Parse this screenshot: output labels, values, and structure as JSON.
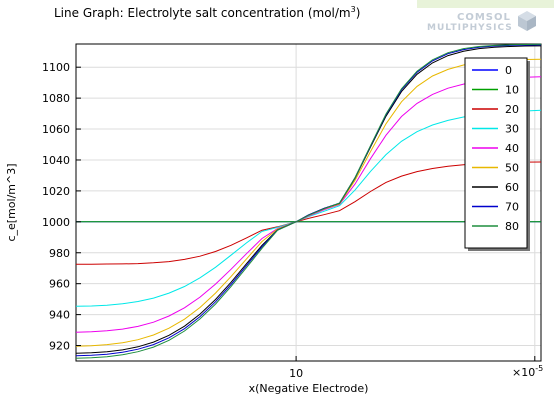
{
  "title": {
    "text": "Line Graph: Electrolyte salt concentration (mol/m",
    "superscript": "3",
    "suffix": ")"
  },
  "logo": {
    "line1": "COMSOL",
    "line2": "MULTIPHYSICS"
  },
  "chart_data": {
    "type": "line",
    "title": "Line Graph: Electrolyte salt concentration (mol/m3)",
    "xlabel": "x(Negative Electrode)",
    "ylabel": "c_e[mol/m^3]",
    "x_scale_label": "×10",
    "x_scale_exponent": "-5",
    "xlim": [
      0,
      15
    ],
    "ylim": [
      910,
      1115
    ],
    "xticks": [
      {
        "value": 7.1,
        "label": "10"
      },
      {
        "value": 14.8,
        "label": ""
      }
    ],
    "yticks": [
      920,
      940,
      960,
      980,
      1000,
      1020,
      1040,
      1060,
      1080,
      1100
    ],
    "grid": true,
    "legend_position": "top-right",
    "x": [
      0,
      0.5,
      1,
      1.5,
      2,
      2.5,
      3,
      3.5,
      4,
      4.5,
      5,
      5.5,
      6,
      6.5,
      7.1,
      7.5,
      8,
      8.5,
      9,
      9.5,
      10,
      10.5,
      11,
      11.5,
      12,
      12.5,
      13,
      13.5,
      14,
      14.5,
      15
    ],
    "series": [
      {
        "name": "0",
        "color": "#0000ff",
        "values": [
          1000,
          1000,
          1000,
          1000,
          1000,
          1000,
          1000,
          1000,
          1000,
          1000,
          1000,
          1000,
          1000,
          1000,
          1000,
          1000,
          1000,
          1000,
          1000,
          1000,
          1000,
          1000,
          1000,
          1000,
          1000,
          1000,
          1000,
          1000,
          1000,
          1000,
          1000
        ]
      },
      {
        "name": "10",
        "color": "#00a000",
        "values": [
          1000,
          1000,
          1000,
          1000,
          1000,
          1000,
          1000,
          1000,
          1000,
          1000,
          1000,
          1000,
          1000,
          1000,
          1000,
          1000,
          1000,
          1000,
          1000,
          1000,
          1000,
          1000,
          1000,
          1000,
          1000,
          1000,
          1000,
          1000,
          1000,
          1000,
          1000
        ]
      },
      {
        "name": "20",
        "color": "#cc0000",
        "values": [
          972.6,
          972.6,
          972.7,
          972.8,
          973,
          973.5,
          974.3,
          975.7,
          977.8,
          980.8,
          984.8,
          989.6,
          994.6,
          996.8,
          1000,
          1002.2,
          1004.6,
          1007.2,
          1013,
          1019.6,
          1025.5,
          1029.6,
          1032.5,
          1034.5,
          1035.9,
          1036.9,
          1037.6,
          1038.1,
          1038.4,
          1038.6,
          1038.7
        ]
      },
      {
        "name": "30",
        "color": "#00e8e8",
        "values": [
          945.4,
          945.6,
          946.1,
          947,
          948.5,
          950.7,
          953.9,
          958.2,
          963.8,
          970.6,
          978.4,
          986.4,
          993.8,
          996.4,
          1000,
          1003.3,
          1006.8,
          1010.4,
          1020.5,
          1032.6,
          1043.5,
          1052.1,
          1058.3,
          1062.6,
          1065.6,
          1067.8,
          1069.3,
          1070.4,
          1071.2,
          1071.7,
          1072.1
        ]
      },
      {
        "name": "40",
        "color": "#ee00ee",
        "values": [
          928.6,
          928.9,
          929.5,
          930.6,
          932.4,
          935.1,
          939.1,
          944.4,
          951.3,
          959.7,
          969.3,
          979.4,
          989.2,
          995.6,
          1000,
          1003.8,
          1007.8,
          1011.2,
          1024.4,
          1040.8,
          1056,
          1068.1,
          1076.6,
          1082.4,
          1086.4,
          1089.1,
          1091,
          1092.2,
          1093,
          1093.5,
          1093.8
        ]
      },
      {
        "name": "50",
        "color": "#e8b800",
        "values": [
          919.6,
          919.9,
          920.6,
          921.8,
          923.8,
          926.8,
          931.2,
          937,
          944.6,
          953.9,
          964.6,
          976,
          987.3,
          995.3,
          1000,
          1004.1,
          1008.3,
          1011.6,
          1026.8,
          1045.4,
          1063.4,
          1077.6,
          1087.6,
          1094.3,
          1098.6,
          1101.4,
          1103.1,
          1104.1,
          1104.7,
          1105,
          1105.2
        ]
      },
      {
        "name": "60",
        "color": "#000000",
        "values": [
          915,
          915.3,
          916,
          917.2,
          919.2,
          922.2,
          926.6,
          932.5,
          940.3,
          949.8,
          960.9,
          972.9,
          984.8,
          994.8,
          1000,
          1004.5,
          1008.7,
          1012,
          1028.2,
          1048.4,
          1068.3,
          1084.2,
          1095.4,
          1102.8,
          1107.5,
          1110.3,
          1112,
          1112.9,
          1113.4,
          1113.7,
          1113.8
        ]
      },
      {
        "name": "70",
        "color": "#0000cc",
        "values": [
          913.4,
          913.7,
          914.4,
          915.6,
          917.6,
          920.6,
          925,
          930.9,
          938.7,
          948.3,
          959.5,
          971.7,
          983.9,
          994.7,
          1000,
          1004.4,
          1008.6,
          1012.1,
          1028.5,
          1049,
          1069.3,
          1085.4,
          1096.7,
          1104.1,
          1108.7,
          1111.4,
          1112.9,
          1113.7,
          1114.1,
          1114.3,
          1114.4
        ]
      },
      {
        "name": "80",
        "color": "#1e8e3e",
        "values": [
          911.8,
          912.1,
          912.8,
          914,
          916,
          919,
          923.4,
          929.4,
          937.2,
          946.8,
          958.1,
          970.4,
          982.9,
          994.5,
          1000,
          1004.2,
          1008.4,
          1012.1,
          1028.6,
          1049.2,
          1069.7,
          1086,
          1097.4,
          1104.8,
          1109.4,
          1112,
          1113.4,
          1114.1,
          1114.5,
          1114.7,
          1114.8
        ]
      }
    ]
  }
}
